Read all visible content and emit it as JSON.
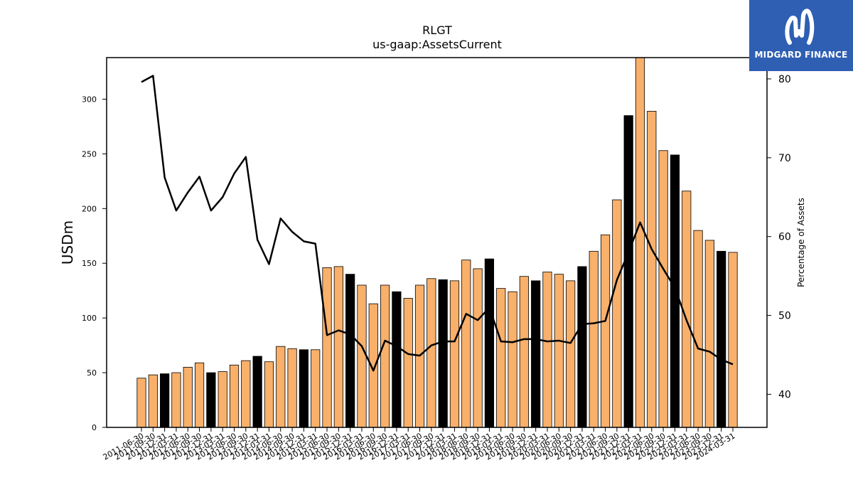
{
  "chart_data": {
    "type": "bar",
    "title": "RLGT",
    "subtitle": "us-gaap:AssetsCurrent",
    "ylabel": "USDm",
    "y2label": "Percentage of Assets",
    "ylim": [
      0,
      338
    ],
    "y2lim": [
      35.8,
      82.7
    ],
    "yticks": [
      0,
      50,
      100,
      150,
      200,
      250,
      300
    ],
    "y2ticks": [
      40,
      50,
      60,
      70,
      80
    ],
    "categories": [
      "2011-06-30",
      "2011-09-30",
      "2011-12-31",
      "2012-03-31",
      "2012-06-30",
      "2012-09-30",
      "2012-12-31",
      "2013-03-31",
      "2013-06-30",
      "2013-09-30",
      "2013-12-31",
      "2014-03-31",
      "2014-06-30",
      "2014-09-30",
      "2014-12-31",
      "2015-03-31",
      "2015-06-30",
      "2015-09-30",
      "2015-12-31",
      "2016-03-31",
      "2016-06-30",
      "2016-09-30",
      "2016-12-31",
      "2017-03-31",
      "2017-06-30",
      "2017-09-30",
      "2017-12-31",
      "2018-03-31",
      "2018-06-30",
      "2018-09-30",
      "2018-12-31",
      "2019-03-31",
      "2019-06-30",
      "2019-09-30",
      "2019-12-31",
      "2020-03-31",
      "2020-06-30",
      "2020-09-30",
      "2020-12-31",
      "2021-03-31",
      "2021-06-30",
      "2021-09-30",
      "2021-12-31",
      "2022-03-31",
      "2022-06-30",
      "2022-09-30",
      "2022-12-31",
      "2023-03-31",
      "2023-06-30",
      "2023-09-30",
      "2023-12-31",
      "2024-03-31"
    ],
    "series": [
      {
        "name": "",
        "type": "bar",
        "values": [
          45,
          48,
          49,
          50,
          55,
          59,
          50,
          51,
          57,
          61,
          65,
          60,
          74,
          72,
          71,
          71,
          146,
          147,
          140,
          130,
          113,
          130,
          124,
          118,
          130,
          136,
          135,
          134,
          153,
          145,
          154,
          127,
          124,
          138,
          134,
          142,
          140,
          134,
          147,
          161,
          176,
          208,
          285,
          339,
          289,
          253,
          249,
          216,
          180,
          171,
          161,
          160
        ],
        "highlight": [
          false,
          false,
          true,
          false,
          false,
          false,
          true,
          false,
          false,
          false,
          true,
          false,
          false,
          false,
          true,
          false,
          false,
          false,
          true,
          false,
          false,
          false,
          true,
          false,
          false,
          false,
          true,
          false,
          false,
          false,
          true,
          false,
          false,
          false,
          true,
          false,
          false,
          false,
          true,
          false,
          false,
          false,
          true,
          false,
          false,
          false,
          true,
          false,
          false,
          false,
          true,
          false
        ]
      },
      {
        "name": "",
        "type": "line",
        "axis": "right",
        "values": [
          79.6,
          80.4,
          67.5,
          63.3,
          65.6,
          67.6,
          63.3,
          65.0,
          68.0,
          70.1,
          59.6,
          56.5,
          62.3,
          60.6,
          59.4,
          59.1,
          47.5,
          48.1,
          47.6,
          46.1,
          43.0,
          46.8,
          46.1,
          45.1,
          44.9,
          46.2,
          46.7,
          46.7,
          50.2,
          49.4,
          51.0,
          46.7,
          46.6,
          47.0,
          47.0,
          46.7,
          46.8,
          46.5,
          48.9,
          49.0,
          49.3,
          54.5,
          58.0,
          61.8,
          58.4,
          55.9,
          53.5,
          49.4,
          45.8,
          45.4,
          44.4,
          43.8
        ]
      }
    ],
    "colors": {
      "bar": "#f8b06b",
      "bar_highlight": "#000000",
      "line": "#000000"
    },
    "grid": false,
    "legend": "none"
  },
  "logo": {
    "text": "MIDGARD FINANCE",
    "background": "#2f5fb3"
  }
}
